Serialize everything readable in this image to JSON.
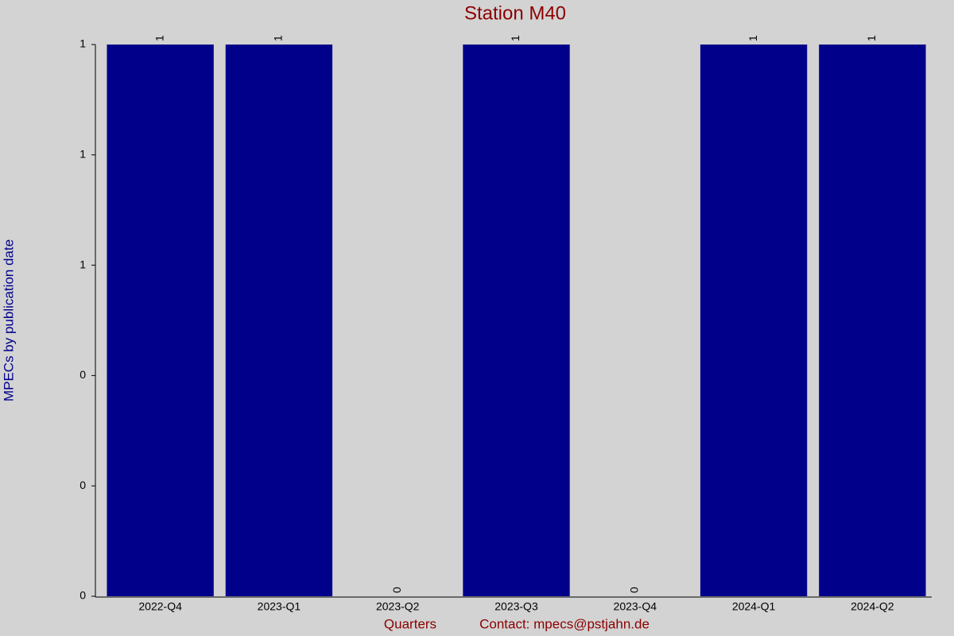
{
  "chart_data": {
    "type": "bar",
    "title": "Station M40",
    "ylabel": "MPECs by publication date",
    "xlabel": "Quarters",
    "contact": "Contact: mpecs@pstjahn.de",
    "categories": [
      "2022-Q4",
      "2023-Q1",
      "2023-Q2",
      "2023-Q3",
      "2023-Q4",
      "2024-Q1",
      "2024-Q2"
    ],
    "values": [
      1,
      1,
      0,
      1,
      0,
      1,
      1
    ],
    "color": "#00008b",
    "ylim": [
      0,
      1
    ],
    "yticks": [
      0,
      {
        "value": 0.2,
        "label": "0"
      },
      {
        "value": 0.4,
        "label": "0"
      },
      {
        "value": 0.6,
        "label": "1"
      },
      {
        "value": 0.8,
        "label": "1"
      },
      1
    ],
    "grid": false
  }
}
